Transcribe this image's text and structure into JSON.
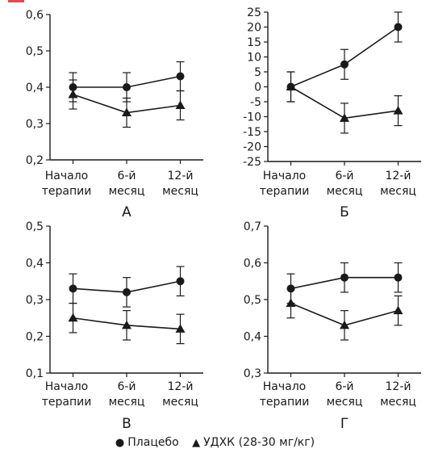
{
  "chart_data": [
    {
      "type": "line",
      "panel_label": "А",
      "categories": [
        [
          "Начало",
          "терапии"
        ],
        [
          "6-й",
          "месяц"
        ],
        [
          "12-й",
          "месяц"
        ]
      ],
      "ylim": [
        0.2,
        0.6
      ],
      "yticks": [
        "0,2",
        "0,3",
        "0,4",
        "0,5",
        "0,6"
      ],
      "ytick_values": [
        0.2,
        0.3,
        0.4,
        0.5,
        0.6
      ],
      "series": [
        {
          "key": "placebo",
          "values": [
            0.4,
            0.4,
            0.43
          ],
          "errors": [
            0.04,
            0.04,
            0.04
          ]
        },
        {
          "key": "udca",
          "values": [
            0.38,
            0.33,
            0.35
          ],
          "errors": [
            0.04,
            0.04,
            0.04
          ]
        }
      ]
    },
    {
      "type": "line",
      "panel_label": "Б",
      "categories": [
        [
          "Начало",
          "терапии"
        ],
        [
          "6-й",
          "месяц"
        ],
        [
          "12-й",
          "месяц"
        ]
      ],
      "ylim": [
        -25,
        25
      ],
      "yticks": [
        "-25",
        "-20",
        "-15",
        "-10",
        "-5",
        "0",
        "5",
        "10",
        "15",
        "20",
        "25"
      ],
      "ytick_values": [
        -25,
        -20,
        -15,
        -10,
        -5,
        0,
        5,
        10,
        15,
        20,
        25
      ],
      "series": [
        {
          "key": "placebo",
          "values": [
            0,
            7.5,
            20
          ],
          "errors": [
            5,
            5,
            5
          ]
        },
        {
          "key": "udca",
          "values": [
            0,
            -10.5,
            -8
          ],
          "errors": [
            5,
            5,
            5
          ]
        }
      ]
    },
    {
      "type": "line",
      "panel_label": "В",
      "categories": [
        [
          "Начало",
          "терапии"
        ],
        [
          "6-й",
          "месяц"
        ],
        [
          "12-й",
          "месяц"
        ]
      ],
      "ylim": [
        0.1,
        0.5
      ],
      "yticks": [
        "0,1",
        "0,2",
        "0,3",
        "0,4",
        "0,5"
      ],
      "ytick_values": [
        0.1,
        0.2,
        0.3,
        0.4,
        0.5
      ],
      "series": [
        {
          "key": "placebo",
          "values": [
            0.33,
            0.32,
            0.35
          ],
          "errors": [
            0.04,
            0.04,
            0.04
          ]
        },
        {
          "key": "udca",
          "values": [
            0.25,
            0.23,
            0.22
          ],
          "errors": [
            0.04,
            0.04,
            0.04
          ]
        }
      ]
    },
    {
      "type": "line",
      "panel_label": "Г",
      "categories": [
        [
          "Начало",
          "терапии"
        ],
        [
          "6-й",
          "месяц"
        ],
        [
          "12-й",
          "месяц"
        ]
      ],
      "ylim": [
        0.3,
        0.7
      ],
      "yticks": [
        "0,3",
        "0,4",
        "0,5",
        "0,6",
        "0,7"
      ],
      "ytick_values": [
        0.3,
        0.4,
        0.5,
        0.6,
        0.7
      ],
      "series": [
        {
          "key": "placebo",
          "values": [
            0.53,
            0.56,
            0.56
          ],
          "errors": [
            0.04,
            0.04,
            0.04
          ]
        },
        {
          "key": "udca",
          "values": [
            0.49,
            0.43,
            0.47
          ],
          "errors": [
            0.04,
            0.04,
            0.04
          ]
        }
      ]
    }
  ],
  "legend": {
    "placebo_symbol": "●",
    "placebo_label": "Плацебо",
    "udca_symbol": "▲",
    "udca_label": "УДХК (28-30 мг/кг)"
  },
  "colors": {
    "ink": "#1a1a1a",
    "accent": "#e5484d"
  }
}
